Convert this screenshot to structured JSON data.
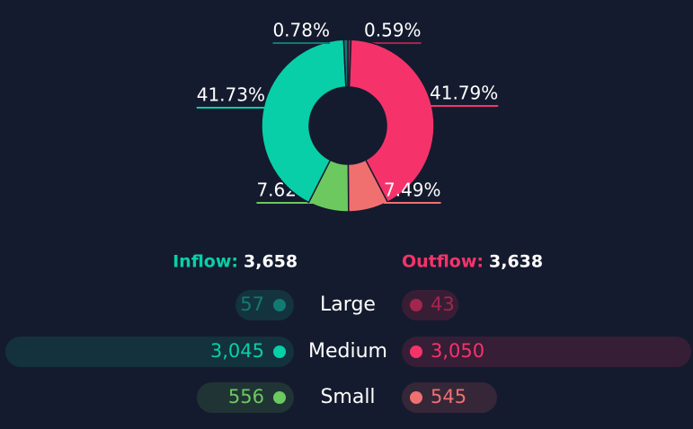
{
  "chart_data": {
    "type": "pie",
    "values": [
      0.59,
      41.79,
      7.49,
      7.62,
      41.73,
      0.78
    ],
    "value_labels": [
      "0.59%",
      "41.79%",
      "7.49%",
      "7.62%",
      "41.73%",
      "0.78%"
    ],
    "colors": [
      "#a3264d",
      "#f5336a",
      "#f07070",
      "#6cc95f",
      "#08cfa8",
      "#117a72"
    ]
  },
  "summary": {
    "inflow": {
      "label": "Inflow:",
      "total": "3,658"
    },
    "outflow": {
      "label": "Outflow:",
      "total": "3,638"
    },
    "rows": [
      {
        "name": "Large",
        "inflow": "57",
        "outflow": "43"
      },
      {
        "name": "Medium",
        "inflow": "3,045",
        "outflow": "3,050"
      },
      {
        "name": "Small",
        "inflow": "556",
        "outflow": "545"
      }
    ]
  }
}
